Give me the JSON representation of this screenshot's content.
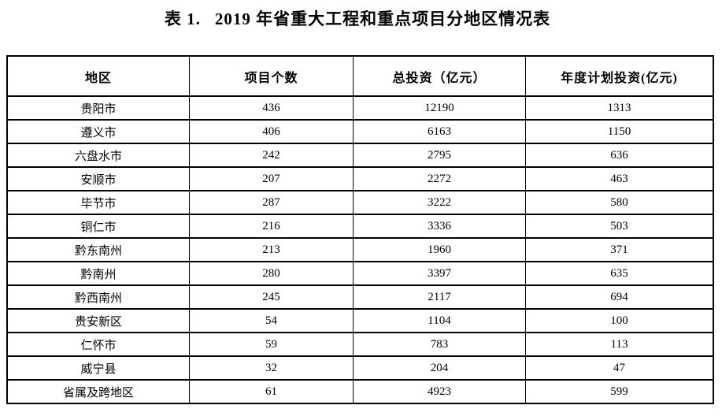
{
  "title": {
    "label": "表 1.",
    "text": "2019 年省重大工程和重点项目分地区情况表"
  },
  "table": {
    "columns": [
      "地区",
      "项目个数",
      "总投资（亿元）",
      "年度计划投资(亿元)"
    ],
    "rows": [
      [
        "贵阳市",
        "436",
        "12190",
        "1313"
      ],
      [
        "遵义市",
        "406",
        "6163",
        "1150"
      ],
      [
        "六盘水市",
        "242",
        "2795",
        "636"
      ],
      [
        "安顺市",
        "207",
        "2272",
        "463"
      ],
      [
        "毕节市",
        "287",
        "3222",
        "580"
      ],
      [
        "铜仁市",
        "216",
        "3336",
        "503"
      ],
      [
        "黔东南州",
        "213",
        "1960",
        "371"
      ],
      [
        "黔南州",
        "280",
        "3397",
        "635"
      ],
      [
        "黔西南州",
        "245",
        "2117",
        "694"
      ],
      [
        "贵安新区",
        "54",
        "1104",
        "100"
      ],
      [
        "仁怀市",
        "59",
        "783",
        "113"
      ],
      [
        "威宁县",
        "32",
        "204",
        "47"
      ],
      [
        "省属及跨地区",
        "61",
        "4923",
        "599"
      ]
    ]
  }
}
